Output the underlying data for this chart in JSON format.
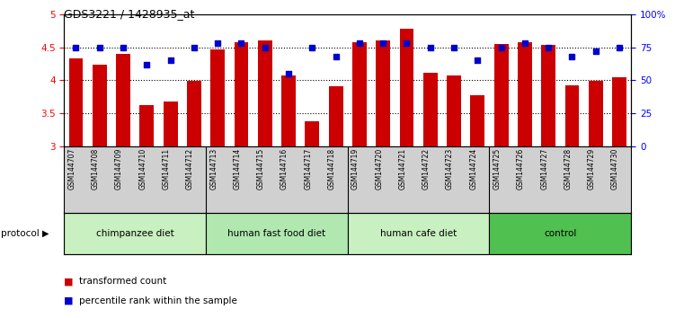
{
  "title": "GDS3221 / 1428935_at",
  "samples": [
    "GSM144707",
    "GSM144708",
    "GSM144709",
    "GSM144710",
    "GSM144711",
    "GSM144712",
    "GSM144713",
    "GSM144714",
    "GSM144715",
    "GSM144716",
    "GSM144717",
    "GSM144718",
    "GSM144719",
    "GSM144720",
    "GSM144721",
    "GSM144722",
    "GSM144723",
    "GSM144724",
    "GSM144725",
    "GSM144726",
    "GSM144727",
    "GSM144728",
    "GSM144729",
    "GSM144730"
  ],
  "bar_values": [
    4.33,
    4.23,
    4.4,
    3.63,
    3.68,
    3.99,
    4.47,
    4.58,
    4.6,
    4.07,
    3.38,
    3.91,
    4.58,
    4.6,
    4.78,
    4.12,
    4.08,
    3.78,
    4.55,
    4.58,
    4.53,
    3.92,
    3.99,
    4.04
  ],
  "percentile_values": [
    75,
    75,
    75,
    62,
    65,
    75,
    78,
    78,
    75,
    55,
    75,
    68,
    78,
    78,
    78,
    75,
    75,
    65,
    75,
    78,
    75,
    68,
    72,
    75
  ],
  "group_boundaries": [
    0,
    6,
    12,
    18,
    24
  ],
  "group_labels": [
    "chimpanzee diet",
    "human fast food diet",
    "human cafe diet",
    "control"
  ],
  "group_colors": [
    "#c8f0c0",
    "#b0e8b0",
    "#c8f0c0",
    "#50c050"
  ],
  "bar_color": "#cc0000",
  "dot_color": "#0000cc",
  "ylim_left": [
    3.0,
    5.0
  ],
  "ylim_right": [
    0,
    100
  ],
  "yticks_left": [
    3.0,
    3.5,
    4.0,
    4.5,
    5.0
  ],
  "ytick_labels_left": [
    "3",
    "3.5",
    "4",
    "4.5",
    "5"
  ],
  "yticks_right": [
    0,
    25,
    50,
    75,
    100
  ],
  "ytick_labels_right": [
    "0",
    "25",
    "50",
    "75",
    "100%"
  ],
  "grid_lines": [
    3.5,
    4.0,
    4.5
  ],
  "bar_width": 0.6,
  "background_color": "#ffffff",
  "tick_area_color": "#d0d0d0"
}
